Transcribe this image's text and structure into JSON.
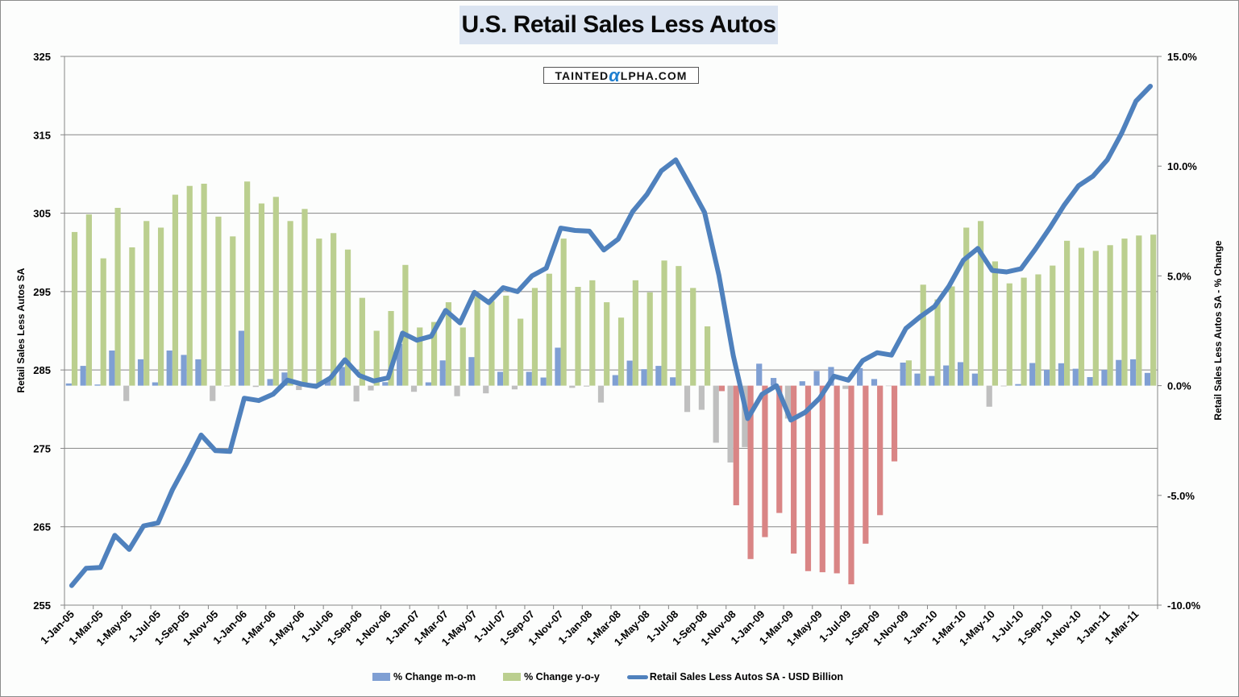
{
  "chart_data": {
    "type": "bar+line",
    "title": "U.S. Retail Sales Less Autos",
    "watermark": "TaintedAlpha.com",
    "ylabel_left": "Retail Sales Less Autos SA",
    "ylabel_right": "Retail Sales Less Autos SA - % Change",
    "ylim_left": [
      255,
      325
    ],
    "yticks_left": [
      "325",
      "315",
      "305",
      "295",
      "285",
      "275",
      "265",
      "255"
    ],
    "ylim_right": [
      -10,
      15
    ],
    "yticks_right": [
      "15.0%",
      "10.0%",
      "5.0%",
      "0.0%",
      "-5.0%",
      "-10.0%"
    ],
    "grid": true,
    "legend_position": "bottom",
    "x": [
      "1-Jan-05",
      "1-Feb-05",
      "1-Mar-05",
      "1-Apr-05",
      "1-May-05",
      "1-Jun-05",
      "1-Jul-05",
      "1-Aug-05",
      "1-Sep-05",
      "1-Oct-05",
      "1-Nov-05",
      "1-Dec-05",
      "1-Jan-06",
      "1-Feb-06",
      "1-Mar-06",
      "1-Apr-06",
      "1-May-06",
      "1-Jun-06",
      "1-Jul-06",
      "1-Aug-06",
      "1-Sep-06",
      "1-Oct-06",
      "1-Nov-06",
      "1-Dec-06",
      "1-Jan-07",
      "1-Feb-07",
      "1-Mar-07",
      "1-Apr-07",
      "1-May-07",
      "1-Jun-07",
      "1-Jul-07",
      "1-Aug-07",
      "1-Sep-07",
      "1-Oct-07",
      "1-Nov-07",
      "1-Dec-07",
      "1-Jan-08",
      "1-Feb-08",
      "1-Mar-08",
      "1-Apr-08",
      "1-May-08",
      "1-Jun-08",
      "1-Jul-08",
      "1-Aug-08",
      "1-Sep-08",
      "1-Oct-08",
      "1-Nov-08",
      "1-Dec-08",
      "1-Jan-09",
      "1-Feb-09",
      "1-Mar-09",
      "1-Apr-09",
      "1-May-09",
      "1-Jun-09",
      "1-Jul-09",
      "1-Aug-09",
      "1-Sep-09",
      "1-Oct-09",
      "1-Nov-09",
      "1-Dec-09",
      "1-Jan-10",
      "1-Feb-10",
      "1-Mar-10",
      "1-Apr-10",
      "1-May-10",
      "1-Jun-10",
      "1-Jul-10",
      "1-Aug-10",
      "1-Sep-10",
      "1-Oct-10",
      "1-Nov-10",
      "1-Dec-10",
      "1-Jan-11",
      "1-Feb-11",
      "1-Mar-11",
      "1-Apr-11"
    ],
    "series": [
      {
        "name": "% Change m-o-m",
        "kind": "bar",
        "axis": "right",
        "unit": "%",
        "color": "#7f9fd3",
        "negative_color": "#bfbfbf",
        "values": [
          0.1,
          0.9,
          0.05,
          1.6,
          -0.7,
          1.2,
          0.15,
          1.6,
          1.4,
          1.2,
          -0.7,
          -0.03,
          2.5,
          -0.06,
          0.3,
          0.6,
          -0.2,
          0.1,
          0.27,
          0.85,
          -0.72,
          -0.22,
          0.16,
          1.9,
          -0.28,
          0.15,
          1.15,
          -0.48,
          1.3,
          -0.35,
          0.63,
          -0.17,
          0.63,
          0.37,
          1.73,
          -0.1,
          -0.04,
          -0.77,
          0.48,
          1.14,
          0.75,
          0.9,
          0.38,
          -1.2,
          -1.1,
          -2.6,
          -3.5,
          -2.8,
          1.0,
          0.35,
          -1.5,
          0.2,
          0.67,
          0.85,
          -0.15,
          0.8,
          0.3,
          -0.02,
          1.05,
          0.55,
          0.44,
          0.92,
          1.07,
          0.55,
          -0.96,
          -0.03,
          0.07,
          1.03,
          0.72,
          1.02,
          0.77,
          0.39,
          0.72,
          1.17,
          1.2,
          0.58
        ]
      },
      {
        "name": "% Change y-o-y",
        "kind": "bar",
        "axis": "right",
        "unit": "%",
        "color": "#bbcf8f",
        "negative_color": "#d98585",
        "values": [
          7.0,
          7.8,
          5.8,
          8.1,
          6.3,
          7.5,
          7.2,
          8.7,
          9.1,
          9.2,
          7.7,
          6.8,
          9.3,
          8.3,
          8.6,
          7.5,
          8.05,
          6.7,
          6.95,
          6.2,
          4.0,
          2.5,
          3.4,
          5.5,
          2.65,
          2.9,
          3.8,
          2.65,
          4.05,
          3.85,
          4.1,
          3.05,
          4.45,
          5.1,
          6.7,
          4.5,
          4.8,
          3.8,
          3.1,
          4.8,
          4.25,
          5.7,
          5.45,
          4.45,
          2.7,
          -0.25,
          -5.45,
          -7.9,
          -6.9,
          -5.8,
          -7.65,
          -8.45,
          -8.5,
          -8.55,
          -9.05,
          -7.2,
          -5.9,
          -3.45,
          1.15,
          4.6,
          3.93,
          4.52,
          7.2,
          7.5,
          5.66,
          4.66,
          4.92,
          5.07,
          5.47,
          6.6,
          6.28,
          6.14,
          6.4,
          6.7,
          6.84,
          6.88
        ]
      },
      {
        "name": "Retail Sales Less Autos SA - USD Billion",
        "kind": "line",
        "axis": "left",
        "unit": "USD Billion",
        "color": "#4f81bd",
        "values": [
          257.5,
          259.7,
          259.8,
          263.9,
          262.1,
          265.1,
          265.5,
          269.7,
          273.1,
          276.7,
          274.7,
          274.6,
          281.4,
          281.1,
          281.9,
          283.7,
          283.2,
          282.9,
          284.0,
          286.3,
          284.3,
          283.6,
          284.0,
          289.7,
          288.8,
          289.3,
          292.6,
          291.0,
          294.9,
          293.6,
          295.5,
          295.0,
          297.0,
          298.0,
          303.1,
          302.8,
          302.7,
          300.3,
          301.7,
          305.2,
          307.4,
          310.4,
          311.8,
          308.5,
          305.1,
          297.1,
          286.8,
          278.8,
          281.9,
          283.0,
          278.6,
          279.6,
          281.4,
          284.2,
          283.7,
          286.2,
          287.2,
          286.9,
          290.3,
          291.8,
          293.1,
          295.7,
          299.0,
          300.5,
          297.7,
          297.5,
          297.9,
          300.4,
          303.1,
          306.0,
          308.5,
          309.7,
          311.8,
          315.2,
          319.3,
          321.2
        ]
      }
    ],
    "label_every": 2
  },
  "legend": {
    "mom": "% Change m-o-m",
    "yoy": "% Change y-o-y",
    "line": "Retail Sales Less Autos SA - USD Billion"
  },
  "logo": {
    "pre": "TAINTED",
    "alpha": "α",
    "post": "LPHA.COM"
  }
}
